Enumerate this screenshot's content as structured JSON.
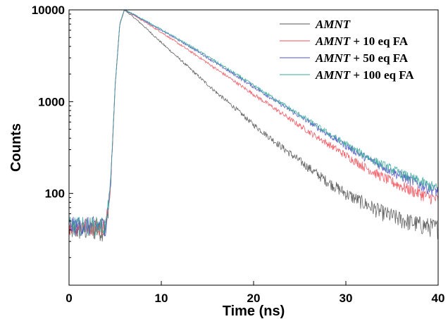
{
  "chart_data": {
    "type": "line",
    "xlabel": "Time (ns)",
    "ylabel": "Counts",
    "xlim": [
      0,
      40
    ],
    "ylim": [
      10,
      10000
    ],
    "y_scale": "log",
    "grid": false,
    "legend_position": "top-right",
    "x_ticks": [
      {
        "value": 0,
        "label": "0"
      },
      {
        "value": 10,
        "label": "10"
      },
      {
        "value": 20,
        "label": "20"
      },
      {
        "value": 30,
        "label": "30"
      },
      {
        "value": 40,
        "label": "40"
      }
    ],
    "y_ticks": [
      {
        "value": 100,
        "label": "100"
      },
      {
        "value": 1000,
        "label": "1000"
      },
      {
        "value": 10000,
        "label": "10000"
      }
    ],
    "series": [
      {
        "name": "AMNT",
        "legend_italic": "AMNT",
        "legend_rest": "",
        "color": "#555555",
        "x": [
          0,
          1,
          2,
          3,
          4,
          4.5,
          5,
          5.5,
          6,
          7,
          8,
          10,
          12,
          14,
          16,
          18,
          20,
          22,
          24,
          26,
          28,
          30,
          32,
          34,
          36,
          38,
          40
        ],
        "y": [
          40,
          40,
          40,
          40,
          40,
          120,
          1500,
          7000,
          10000,
          8300,
          6800,
          4400,
          2900,
          1900,
          1250,
          850,
          560,
          390,
          270,
          190,
          135,
          100,
          78,
          62,
          52,
          46,
          42
        ]
      },
      {
        "name": "AMNT + 10 eq FA",
        "legend_italic": "AMNT",
        "legend_rest": " + 10 eq FA",
        "color": "#f0505a",
        "x": [
          0,
          1,
          2,
          3,
          4,
          4.5,
          5,
          5.5,
          6,
          7,
          8,
          10,
          12,
          14,
          16,
          18,
          20,
          22,
          24,
          26,
          28,
          30,
          32,
          34,
          36,
          38,
          40
        ],
        "y": [
          45,
          45,
          45,
          45,
          45,
          125,
          1500,
          7000,
          10000,
          8800,
          7600,
          5700,
          4200,
          3100,
          2250,
          1650,
          1200,
          880,
          640,
          470,
          350,
          260,
          195,
          150,
          120,
          100,
          85
        ]
      },
      {
        "name": "AMNT + 50 eq FA",
        "legend_italic": "AMNT",
        "legend_rest": " + 50 eq FA",
        "color": "#5050c8",
        "x": [
          0,
          1,
          2,
          3,
          4,
          4.5,
          5,
          5.5,
          6,
          7,
          8,
          10,
          12,
          14,
          16,
          18,
          20,
          22,
          24,
          26,
          28,
          30,
          32,
          34,
          36,
          38,
          40
        ],
        "y": [
          45,
          45,
          45,
          45,
          45,
          125,
          1500,
          7000,
          10000,
          8900,
          7800,
          6000,
          4600,
          3500,
          2600,
          1950,
          1450,
          1080,
          800,
          600,
          445,
          330,
          250,
          195,
          155,
          125,
          105
        ]
      },
      {
        "name": "AMNT + 100 eq FA",
        "legend_italic": "AMNT",
        "legend_rest": " + 100 eq FA",
        "color": "#3aa89a",
        "x": [
          0,
          1,
          2,
          3,
          4,
          4.5,
          5,
          5.5,
          6,
          7,
          8,
          10,
          12,
          14,
          16,
          18,
          20,
          22,
          24,
          26,
          28,
          30,
          32,
          34,
          36,
          38,
          40
        ],
        "y": [
          45,
          45,
          45,
          45,
          45,
          125,
          1500,
          7000,
          10000,
          8950,
          7900,
          6100,
          4700,
          3600,
          2700,
          2020,
          1500,
          1120,
          830,
          620,
          460,
          345,
          260,
          205,
          165,
          135,
          112
        ]
      }
    ]
  }
}
